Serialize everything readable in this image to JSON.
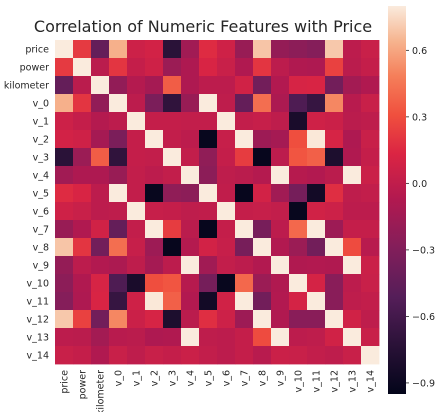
{
  "chart_data": {
    "type": "heatmap",
    "title": "Correlation of Numeric Features with Price",
    "xlabel": "",
    "ylabel": "",
    "labels": [
      "price",
      "power",
      "kilometer",
      "v_0",
      "v_1",
      "v_2",
      "v_3",
      "v_4",
      "v_5",
      "v_6",
      "v_7",
      "v_8",
      "v_9",
      "v_10",
      "v_11",
      "v_12",
      "v_13",
      "v_14"
    ],
    "values": [
      [
        1.0,
        0.22,
        -0.44,
        0.63,
        0.06,
        0.09,
        -0.73,
        -0.15,
        0.16,
        0.07,
        -0.19,
        0.69,
        -0.21,
        -0.25,
        -0.28,
        0.7,
        -0.02,
        0.04
      ],
      [
        0.22,
        1.0,
        -0.03,
        0.2,
        0.02,
        0.07,
        -0.18,
        -0.09,
        0.12,
        0.04,
        -0.08,
        0.2,
        -0.02,
        -0.08,
        -0.09,
        0.25,
        -0.03,
        0.02
      ],
      [
        -0.44,
        -0.03,
        1.0,
        -0.22,
        -0.06,
        -0.13,
        0.36,
        -0.09,
        -0.02,
        -0.02,
        0.08,
        -0.37,
        -0.07,
        0.11,
        0.12,
        -0.37,
        -0.14,
        -0.08
      ],
      [
        0.63,
        0.2,
        -0.22,
        1.0,
        -0.02,
        -0.33,
        -0.7,
        -0.19,
        0.8,
        -0.01,
        -0.44,
        0.42,
        -0.1,
        -0.55,
        -0.67,
        0.51,
        -0.04,
        0.04
      ],
      [
        0.06,
        0.02,
        -0.06,
        -0.02,
        1.0,
        0.02,
        0.02,
        0.01,
        0.01,
        0.96,
        0.01,
        0.03,
        -0.01,
        -0.82,
        0.07,
        0.05,
        -0.03,
        -0.01
      ],
      [
        0.09,
        0.07,
        -0.13,
        -0.33,
        0.02,
        1.0,
        0.01,
        -0.02,
        -0.92,
        0.03,
        0.91,
        -0.17,
        -0.13,
        0.3,
        0.79,
        0.11,
        -0.09,
        0.04
      ],
      [
        -0.73,
        -0.18,
        0.36,
        -0.7,
        0.02,
        0.01,
        1.0,
        0.01,
        -0.23,
        0.02,
        0.23,
        -0.93,
        -0.02,
        0.33,
        0.37,
        -0.8,
        -0.08,
        0.02
      ],
      [
        -0.15,
        -0.09,
        -0.09,
        -0.19,
        0.01,
        -0.02,
        0.01,
        1.0,
        -0.25,
        -0.01,
        -0.03,
        -0.06,
        0.88,
        -0.05,
        -0.07,
        -0.03,
        0.95,
        0.05
      ],
      [
        0.16,
        0.12,
        -0.02,
        0.8,
        0.01,
        -0.92,
        -0.23,
        -0.25,
        1.0,
        0.0,
        -0.93,
        0.09,
        -0.15,
        -0.36,
        -0.86,
        0.17,
        -0.01,
        0.01
      ],
      [
        0.07,
        0.04,
        -0.02,
        -0.01,
        0.96,
        0.03,
        0.02,
        -0.01,
        0.0,
        1.0,
        0.02,
        0.03,
        0.01,
        -0.92,
        0.08,
        0.06,
        -0.02,
        -0.02
      ],
      [
        -0.19,
        -0.08,
        0.08,
        -0.44,
        0.01,
        0.91,
        0.23,
        -0.03,
        -0.93,
        0.02,
        1.0,
        -0.35,
        -0.02,
        0.4,
        0.83,
        -0.17,
        0.02,
        0.02
      ],
      [
        0.69,
        0.2,
        -0.37,
        0.42,
        0.03,
        -0.17,
        -0.93,
        -0.06,
        0.09,
        0.03,
        -0.35,
        1.0,
        -0.07,
        -0.18,
        -0.37,
        0.81,
        0.29,
        -0.04
      ],
      [
        -0.21,
        -0.02,
        -0.07,
        -0.1,
        -0.01,
        -0.13,
        -0.02,
        0.88,
        -0.15,
        0.01,
        -0.02,
        -0.07,
        1.0,
        -0.08,
        -0.07,
        -0.08,
        0.91,
        0.05
      ],
      [
        -0.25,
        -0.08,
        0.11,
        -0.55,
        -0.82,
        0.3,
        0.33,
        -0.05,
        -0.36,
        -0.92,
        0.4,
        -0.18,
        -0.08,
        1.0,
        0.1,
        -0.26,
        -0.02,
        0.04
      ],
      [
        -0.28,
        -0.09,
        0.12,
        -0.67,
        0.07,
        0.79,
        0.37,
        -0.07,
        -0.86,
        0.08,
        0.83,
        -0.37,
        -0.07,
        0.1,
        1.0,
        -0.26,
        -0.01,
        0.01
      ],
      [
        0.7,
        0.25,
        -0.37,
        0.51,
        0.05,
        0.11,
        -0.8,
        -0.03,
        0.17,
        0.06,
        -0.17,
        0.81,
        -0.08,
        -0.26,
        -0.26,
        1.0,
        0.08,
        -0.01
      ],
      [
        -0.02,
        -0.03,
        -0.14,
        -0.04,
        -0.03,
        -0.09,
        -0.08,
        0.95,
        -0.01,
        -0.02,
        0.02,
        0.29,
        0.91,
        -0.02,
        -0.01,
        0.08,
        1.0,
        0.04
      ],
      [
        0.04,
        0.02,
        -0.08,
        0.04,
        -0.01,
        0.04,
        0.02,
        0.05,
        0.01,
        -0.02,
        0.02,
        -0.04,
        0.05,
        0.04,
        0.01,
        -0.01,
        0.04,
        1.0
      ]
    ],
    "colorbar": {
      "range": [
        -0.95,
        0.8
      ],
      "ticks": [
        0.6,
        0.3,
        0.0,
        -0.3,
        -0.6,
        -0.9
      ],
      "tick_labels": [
        "0.6",
        "0.3",
        "0.0",
        "−0.3",
        "−0.6",
        "−0.9"
      ]
    },
    "colormap": "rocket",
    "grid": false,
    "legend": "colorbar-right"
  }
}
